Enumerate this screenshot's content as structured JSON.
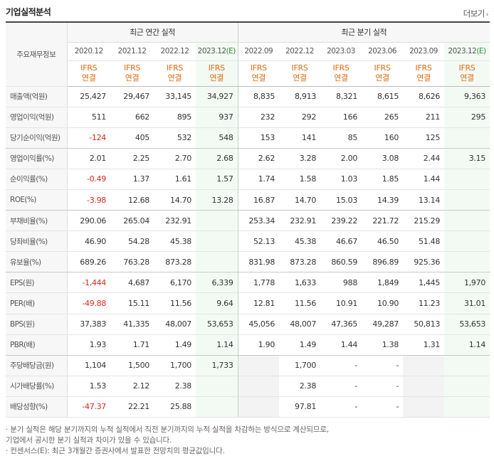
{
  "header": {
    "title": "기업실적분석",
    "more_label": "더보기"
  },
  "table": {
    "row_header_label": "주요재무정보",
    "groups": {
      "annual": "최근 연간 실적",
      "quarterly": "최근 분기 실적"
    },
    "annual_periods": [
      "2020.12",
      "2021.12",
      "2022.12",
      "2023.12(E)"
    ],
    "quarter_periods": [
      "2022.09",
      "2022.12",
      "2023.03",
      "2023.06",
      "2023.09",
      "2023.12(E)"
    ],
    "ifrs_line1": "IFRS",
    "ifrs_line2": "연결",
    "rows": [
      {
        "label": "매출액(억원)",
        "cells": [
          "25,427",
          "29,467",
          "33,145",
          "34,927",
          "8,835",
          "8,913",
          "8,321",
          "8,615",
          "8,626",
          "9,363"
        ]
      },
      {
        "label": "영업이익(억원)",
        "cells": [
          "511",
          "662",
          "895",
          "937",
          "232",
          "292",
          "166",
          "265",
          "211",
          "295"
        ]
      },
      {
        "label": "당기순이익(억원)",
        "cells": [
          "-124",
          "405",
          "532",
          "548",
          "153",
          "141",
          "85",
          "160",
          "125",
          ""
        ]
      },
      {
        "label": "영업이익률(%)",
        "cells": [
          "2.01",
          "2.25",
          "2.70",
          "2.68",
          "2.62",
          "3.28",
          "2.00",
          "3.08",
          "2.44",
          "3.15"
        ]
      },
      {
        "label": "순이익률(%)",
        "cells": [
          "-0.49",
          "1.37",
          "1.61",
          "1.57",
          "1.74",
          "1.58",
          "1.03",
          "1.85",
          "1.44",
          ""
        ]
      },
      {
        "label": "ROE(%)",
        "cells": [
          "-3.98",
          "12.68",
          "14.70",
          "13.28",
          "16.87",
          "14.70",
          "15.03",
          "14.39",
          "13.14",
          ""
        ]
      },
      {
        "label": "부채비율(%)",
        "cells": [
          "290.06",
          "265.04",
          "232.91",
          "",
          "253.34",
          "232.91",
          "239.22",
          "221.72",
          "215.29",
          ""
        ]
      },
      {
        "label": "당좌비율(%)",
        "cells": [
          "46.90",
          "54.28",
          "45.38",
          "",
          "52.13",
          "45.38",
          "46.67",
          "46.50",
          "51.48",
          ""
        ]
      },
      {
        "label": "유보율(%)",
        "cells": [
          "689.26",
          "763.28",
          "873.28",
          "",
          "831.98",
          "873.28",
          "860.59",
          "896.89",
          "925.36",
          ""
        ]
      },
      {
        "label": "EPS(원)",
        "cells": [
          "-1,444",
          "4,687",
          "6,170",
          "6,339",
          "1,778",
          "1,633",
          "988",
          "1,849",
          "1,445",
          "1,970"
        ]
      },
      {
        "label": "PER(배)",
        "cells": [
          "-49.88",
          "15.11",
          "11.56",
          "9.64",
          "12.81",
          "11.56",
          "10.91",
          "10.90",
          "11.23",
          "31.01"
        ]
      },
      {
        "label": "BPS(원)",
        "cells": [
          "37,383",
          "41,335",
          "48,007",
          "53,653",
          "45,056",
          "48,007",
          "47,365",
          "49,287",
          "50,813",
          "53,653"
        ]
      },
      {
        "label": "PBR(배)",
        "cells": [
          "1.93",
          "1.71",
          "1.49",
          "1.14",
          "1.90",
          "1.49",
          "1.44",
          "1.38",
          "1.31",
          "1.14"
        ]
      },
      {
        "label": "주당배당금(원)",
        "cells": [
          "1,104",
          "1,500",
          "1,700",
          "1,733",
          "",
          "1,700",
          "-",
          "-",
          "",
          ""
        ]
      },
      {
        "label": "시가배당률(%)",
        "cells": [
          "1.53",
          "2.12",
          "2.38",
          "",
          "",
          "2.38",
          "-",
          "-",
          "",
          ""
        ]
      },
      {
        "label": "배당성향(%)",
        "cells": [
          "-47.37",
          "22.21",
          "25.88",
          "",
          "",
          "97.81",
          "-",
          "-",
          "",
          ""
        ]
      }
    ]
  },
  "notes": [
    "· 분기 실적은 해당 분기까지의 누적 실적에서 직전 분기까지의 누적 실적을 차감하는 방식으로 계산되므로,",
    "  기업에서 공시한 분기 실적과 차이가 있을 수 있습니다.",
    "· 컨센서스(E): 최근 3개월간 증권사에서 발표한 전망치의 평균값입니다."
  ],
  "colors": {
    "ifrs": "#e06a10",
    "estimate": "#2e8b3e",
    "negative": "#d9261c",
    "estimate_bg": "#f3faf3"
  }
}
